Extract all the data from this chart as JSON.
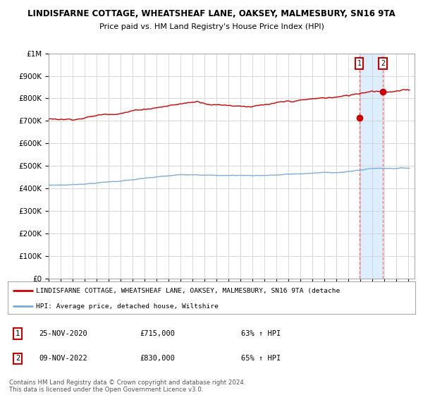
{
  "title1": "LINDISFARNE COTTAGE, WHEATSHEAF LANE, OAKSEY, MALMESBURY, SN16 9TA",
  "title2": "Price paid vs. HM Land Registry's House Price Index (HPI)",
  "ylabel_ticks": [
    "£0",
    "£100K",
    "£200K",
    "£300K",
    "£400K",
    "£500K",
    "£600K",
    "£700K",
    "£800K",
    "£900K",
    "£1M"
  ],
  "ytick_values": [
    0,
    100000,
    200000,
    300000,
    400000,
    500000,
    600000,
    700000,
    800000,
    900000,
    1000000
  ],
  "sale1_date": 2020.9,
  "sale1_price": 715000,
  "sale1_label": "1",
  "sale1_display": "25-NOV-2020",
  "sale1_amount": "£715,000",
  "sale1_hpi": "63% ↑ HPI",
  "sale2_date": 2022.86,
  "sale2_price": 830000,
  "sale2_label": "2",
  "sale2_display": "09-NOV-2022",
  "sale2_amount": "£830,000",
  "sale2_hpi": "65% ↑ HPI",
  "red_line_color": "#cc0000",
  "blue_line_color": "#7aadda",
  "highlight_color": "#ddeeff",
  "dashed_line_color": "#ff6666",
  "grid_color": "#cccccc",
  "background_color": "#ffffff",
  "legend_line1": "LINDISFARNE COTTAGE, WHEATSHEAF LANE, OAKSEY, MALMESBURY, SN16 9TA (detache",
  "legend_line2": "HPI: Average price, detached house, Wiltshire",
  "footer": "Contains HM Land Registry data © Crown copyright and database right 2024.\nThis data is licensed under the Open Government Licence v3.0."
}
